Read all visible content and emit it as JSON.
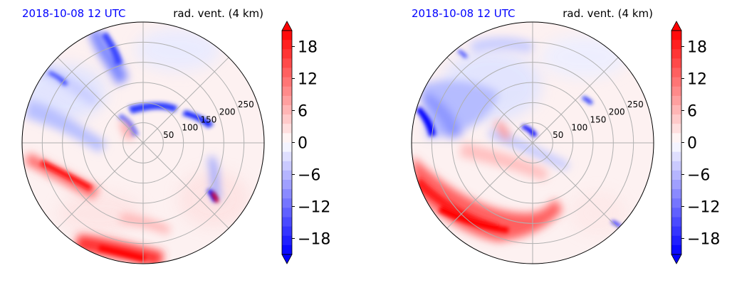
{
  "chart_data": [
    {
      "type": "heatmap",
      "projection": "polar",
      "title_left": "2018-10-08 12 UTC",
      "title_right": "rad. vent. (4 km)",
      "title_left_color": "#0000ff",
      "radial_ticks": [
        "50",
        "100",
        "150",
        "200",
        "250"
      ],
      "radial_values": [
        50,
        100,
        150,
        200,
        250
      ],
      "rmax": 300,
      "colorbar": {
        "ticks": [
          "18",
          "12",
          "6",
          "0",
          "−6",
          "−12",
          "−18"
        ],
        "tick_values": [
          18,
          12,
          6,
          0,
          -6,
          -12,
          -18
        ],
        "vmin": -21,
        "vmax": 21,
        "extend": "both",
        "colormap": "bwr",
        "colors": [
          "#0000ff",
          "#ffffff",
          "#ff0000"
        ]
      }
    },
    {
      "type": "heatmap",
      "projection": "polar",
      "title_left": "2018-10-08 12 UTC",
      "title_right": "rad. vent. (4 km)",
      "title_left_color": "#0000ff",
      "radial_ticks": [
        "50",
        "100",
        "150",
        "200",
        "250"
      ],
      "radial_values": [
        50,
        100,
        150,
        200,
        250
      ],
      "rmax": 300,
      "colorbar": {
        "ticks": [
          "18",
          "12",
          "6",
          "0",
          "−6",
          "−12",
          "−18"
        ],
        "tick_values": [
          18,
          12,
          6,
          0,
          -6,
          -12,
          -18
        ],
        "vmin": -21,
        "vmax": 21,
        "extend": "both",
        "colormap": "bwr",
        "colors": [
          "#0000ff",
          "#ffffff",
          "#ff0000"
        ]
      }
    }
  ]
}
